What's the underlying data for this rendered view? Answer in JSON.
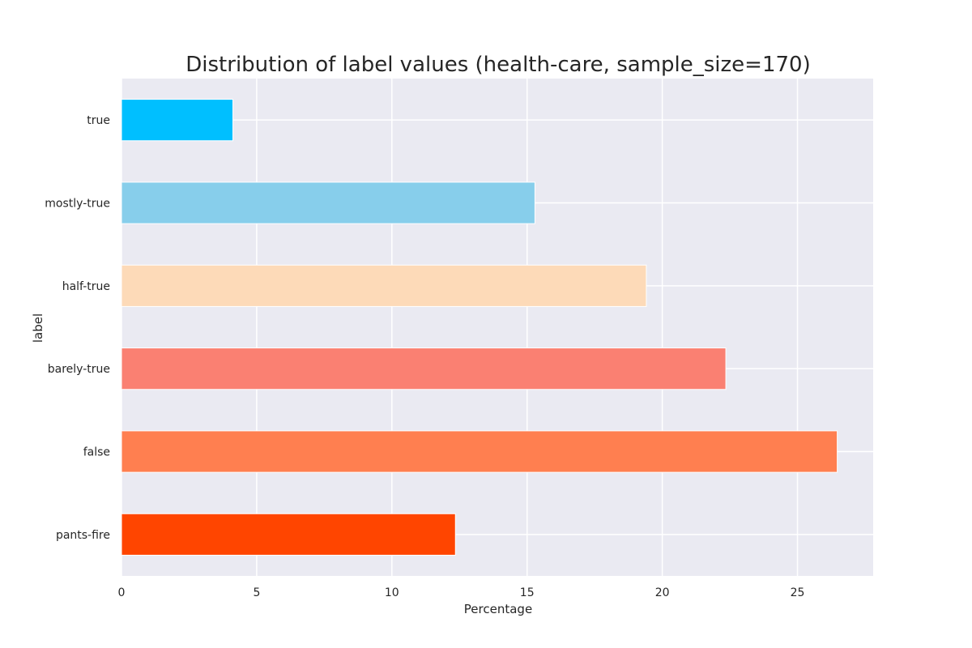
{
  "chart_data": {
    "type": "bar",
    "orientation": "horizontal",
    "title": "Distribution of label values (health-care, sample_size=170)",
    "xlabel": "Percentage",
    "ylabel": "label",
    "categories": [
      "true",
      "mostly-true",
      "half-true",
      "barely-true",
      "false",
      "pants-fire"
    ],
    "values": [
      4.12,
      15.29,
      19.41,
      22.35,
      26.47,
      12.35
    ],
    "colors": [
      "#00bfff",
      "#87ceeb",
      "#fddab8",
      "#fa8072",
      "#ff7f50",
      "#ff4500"
    ],
    "xlim": [
      0,
      27.8
    ],
    "xticks": [
      0,
      5,
      10,
      15,
      20,
      25
    ],
    "grid": true,
    "background": "#eaeaf2"
  }
}
